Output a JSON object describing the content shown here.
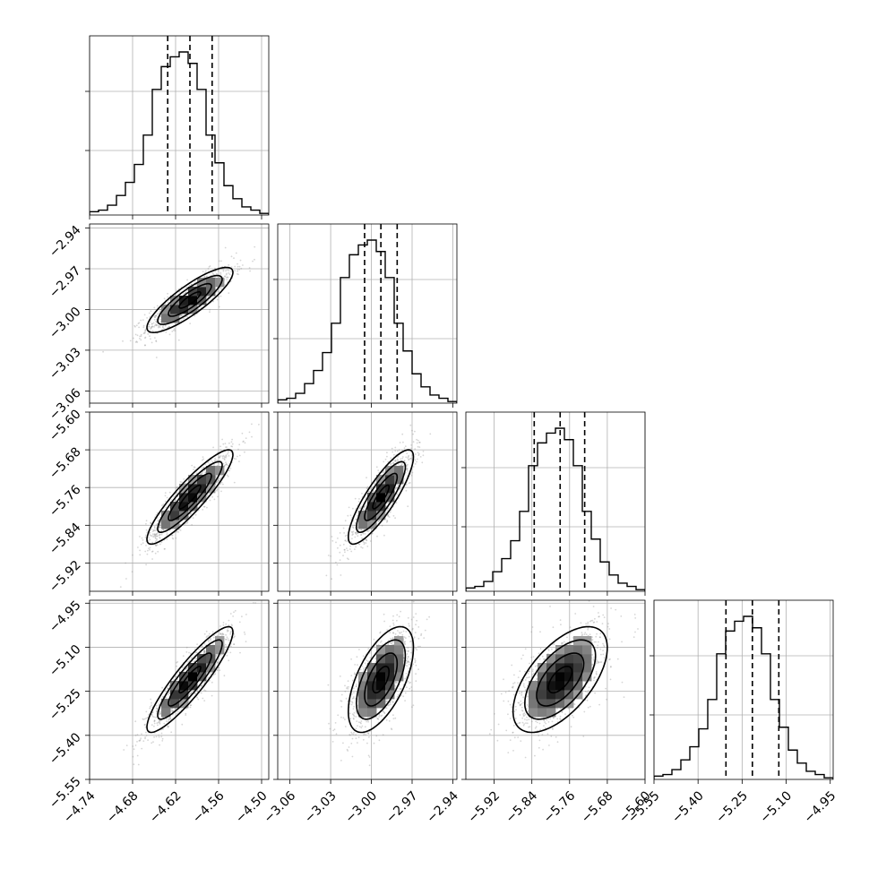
{
  "figure": {
    "type": "corner-plot",
    "colors": {
      "ink": "#000000",
      "grid": "#b0b0b0",
      "scatter": "#8a8a8a"
    }
  },
  "chart_data": {
    "type": "corner",
    "parameters": [
      {
        "index": 0,
        "median": -4.6,
        "sigma": 0.03,
        "range": [
          -4.74,
          -4.49
        ],
        "ticks": [
          -4.74,
          -4.68,
          -4.62,
          -4.56,
          -4.5
        ],
        "tick_labels": [
          "−4.74",
          "−4.68",
          "−4.62",
          "−4.56",
          "−4.50"
        ],
        "quantiles": [
          -4.631,
          -4.6,
          -4.569
        ]
      },
      {
        "index": 1,
        "median": -2.993,
        "sigma": 0.012,
        "range": [
          -3.069,
          -2.937
        ],
        "ticks": [
          -3.06,
          -3.03,
          -3.0,
          -2.97,
          -2.94
        ],
        "tick_labels": [
          "−3.06",
          "−3.03",
          "−3.00",
          "−2.97",
          "−2.94"
        ],
        "quantiles": [
          -3.005,
          -2.993,
          -2.981
        ]
      },
      {
        "index": 2,
        "median": -5.78,
        "sigma": 0.05,
        "range": [
          -5.98,
          -5.6
        ],
        "ticks": [
          -5.92,
          -5.84,
          -5.76,
          -5.68,
          -5.6
        ],
        "tick_labels": [
          "−5.92",
          "−5.84",
          "−5.76",
          "−5.68",
          "−5.60"
        ],
        "quantiles": [
          -5.835,
          -5.78,
          -5.728
        ]
      },
      {
        "index": 3,
        "median": -5.21,
        "sigma": 0.09,
        "range": [
          -5.55,
          -4.94
        ],
        "ticks": [
          -5.55,
          -5.4,
          -5.25,
          -5.1,
          -4.95
        ],
        "tick_labels": [
          "−5.55",
          "−5.40",
          "−5.25",
          "−5.10",
          "−4.95"
        ],
        "quantiles": [
          -5.305,
          -5.215,
          -5.125
        ]
      }
    ],
    "correlations": [
      [
        1.0,
        0.85,
        0.9,
        0.9
      ],
      [
        0.85,
        1.0,
        0.85,
        0.6
      ],
      [
        0.9,
        0.85,
        1.0,
        0.6
      ],
      [
        0.9,
        0.6,
        0.6,
        1.0
      ]
    ],
    "histogram": {
      "bins": 20,
      "relative_counts": [
        0.02,
        0.03,
        0.06,
        0.12,
        0.2,
        0.31,
        0.49,
        0.77,
        0.91,
        0.97,
        1.0,
        0.93,
        0.77,
        0.49,
        0.32,
        0.18,
        0.1,
        0.05,
        0.03,
        0.01
      ]
    },
    "contour_levels_sigma": [
      0.5,
      1.0,
      1.5,
      2.0
    ],
    "xlabel": "",
    "ylabel": "",
    "title": ""
  }
}
